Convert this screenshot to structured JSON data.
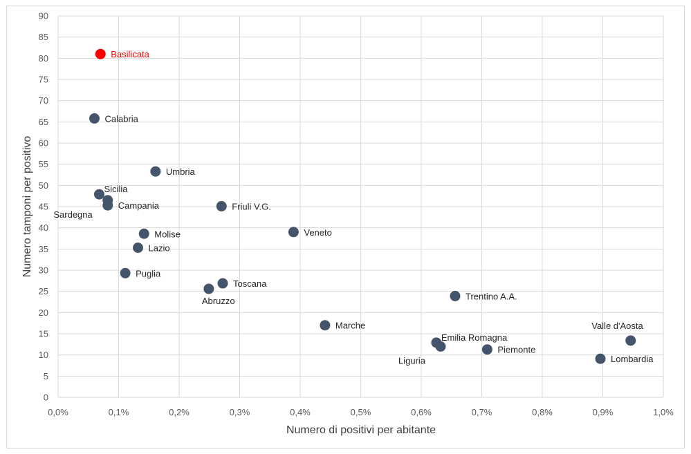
{
  "chart_data": {
    "type": "scatter",
    "xlabel": "Numero di positivi per abitante",
    "ylabel": "Numero tamponi per positivo",
    "xlim": [
      0,
      1.0
    ],
    "ylim": [
      0,
      90
    ],
    "x_ticks": [
      0,
      0.1,
      0.2,
      0.3,
      0.4,
      0.5,
      0.6,
      0.7,
      0.8,
      0.9,
      1.0
    ],
    "x_tick_labels": [
      "0,0%",
      "0,1%",
      "0,2%",
      "0,3%",
      "0,4%",
      "0,5%",
      "0,6%",
      "0,7%",
      "0,8%",
      "0,9%",
      "1,0%"
    ],
    "y_ticks": [
      0,
      5,
      10,
      15,
      20,
      25,
      30,
      35,
      40,
      45,
      50,
      55,
      60,
      65,
      70,
      75,
      80,
      85,
      90
    ],
    "y_tick_labels": [
      "0",
      "5",
      "10",
      "15",
      "20",
      "25",
      "30",
      "35",
      "40",
      "45",
      "50",
      "55",
      "60",
      "65",
      "70",
      "75",
      "80",
      "85",
      "90"
    ],
    "grid": true,
    "legend": "none",
    "colors": {
      "default": "#44546a",
      "highlight": "#ff0000",
      "grid": "#d9d9d9"
    },
    "points": [
      {
        "label": "Basilicata",
        "x": 0.07,
        "y": 81.0,
        "highlight": true,
        "pos": "right"
      },
      {
        "label": "Calabria",
        "x": 0.06,
        "y": 65.8,
        "pos": "right"
      },
      {
        "label": "Umbria",
        "x": 0.161,
        "y": 53.3,
        "pos": "right"
      },
      {
        "label": "Sicilia",
        "x": 0.068,
        "y": 47.9,
        "pos": "right-up"
      },
      {
        "label": "Sardegna",
        "x": 0.082,
        "y": 46.5,
        "pos": "below-left"
      },
      {
        "label": "Campania",
        "x": 0.082,
        "y": 45.3,
        "pos": "right"
      },
      {
        "label": "Friuli V.G.",
        "x": 0.27,
        "y": 45.1,
        "pos": "right"
      },
      {
        "label": "Molise",
        "x": 0.142,
        "y": 38.6,
        "pos": "right"
      },
      {
        "label": "Veneto",
        "x": 0.389,
        "y": 39.0,
        "pos": "right"
      },
      {
        "label": "Lazio",
        "x": 0.132,
        "y": 35.3,
        "pos": "right"
      },
      {
        "label": "Puglia",
        "x": 0.111,
        "y": 29.3,
        "pos": "right"
      },
      {
        "label": "Toscana",
        "x": 0.272,
        "y": 26.9,
        "pos": "right"
      },
      {
        "label": "Abruzzo",
        "x": 0.249,
        "y": 25.6,
        "pos": "below"
      },
      {
        "label": "Trentino A.A.",
        "x": 0.656,
        "y": 23.9,
        "pos": "right"
      },
      {
        "label": "Marche",
        "x": 0.441,
        "y": 17.0,
        "pos": "right"
      },
      {
        "label": "Valle d'Aosta",
        "x": 0.946,
        "y": 13.4,
        "pos": "above-left"
      },
      {
        "label": "Emilia Romagna",
        "x": 0.625,
        "y": 12.9,
        "pos": "right-up"
      },
      {
        "label": "Liguria",
        "x": 0.632,
        "y": 12.0,
        "pos": "below-left"
      },
      {
        "label": "Piemonte",
        "x": 0.709,
        "y": 11.3,
        "pos": "right"
      },
      {
        "label": "Lombardia",
        "x": 0.896,
        "y": 9.1,
        "pos": "right"
      }
    ]
  }
}
